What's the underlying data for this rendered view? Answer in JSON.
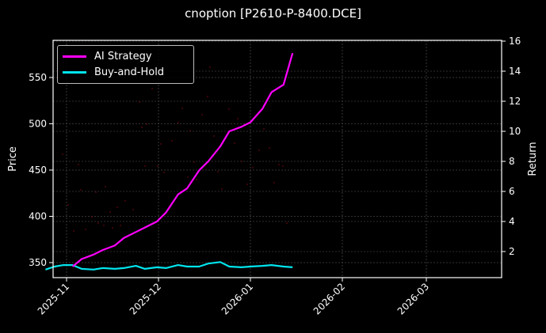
{
  "chart_data": {
    "type": "line",
    "title": "cnoption [P2610-P-8400.DCE]",
    "xlabel": "",
    "ylabel": "Price",
    "ylabel_right": "Return",
    "x_ticks": [
      "2025-11",
      "2025-12",
      "2026-01",
      "2026-02",
      "2026-03"
    ],
    "y_ticks_left": [
      350,
      400,
      450,
      500,
      550
    ],
    "y_ticks_right": [
      2,
      4,
      6,
      8,
      10,
      12,
      14,
      16
    ],
    "ylim_left": [
      333,
      585
    ],
    "ylim_right": [
      0.3,
      16
    ],
    "grid": true,
    "legend_position": "upper left",
    "colors": {
      "ai_strategy": "#ff00ff",
      "buy_and_hold": "#00e5ee",
      "background": "#000000",
      "grid": "#444444",
      "scatter": "#8b0000"
    },
    "x": [
      "2025-10-25",
      "2025-10-28",
      "2025-10-31",
      "2025-11-03",
      "2025-11-06",
      "2025-11-10",
      "2025-11-13",
      "2025-11-17",
      "2025-11-20",
      "2025-11-24",
      "2025-11-27",
      "2025-12-01",
      "2025-12-04",
      "2025-12-08",
      "2025-12-11",
      "2025-12-15",
      "2025-12-18",
      "2025-12-22",
      "2025-12-25",
      "2025-12-29",
      "2026-01-01",
      "2026-01-05",
      "2026-01-08",
      "2026-01-12",
      "2026-01-15"
    ],
    "series": [
      {
        "name": "AI Strategy",
        "axis": "right",
        "values": [
          null,
          null,
          null,
          1.0,
          1.5,
          1.8,
          2.1,
          2.4,
          2.9,
          3.3,
          3.6,
          4.0,
          4.6,
          5.8,
          6.2,
          7.4,
          8.0,
          9.0,
          10.0,
          10.3,
          10.6,
          11.5,
          12.6,
          13.1,
          15.2
        ]
      },
      {
        "name": "Buy-and-Hold",
        "axis": "right",
        "values": [
          0.8,
          1.0,
          1.1,
          1.1,
          0.85,
          0.8,
          0.9,
          0.85,
          0.9,
          1.05,
          0.85,
          0.95,
          0.9,
          1.1,
          1.0,
          1.0,
          1.2,
          1.3,
          1.0,
          0.95,
          1.0,
          1.05,
          1.1,
          1.0,
          0.95
        ]
      }
    ]
  },
  "legend": {
    "items": [
      {
        "label": "AI Strategy",
        "color": "#ff00ff"
      },
      {
        "label": "Buy-and-Hold",
        "color": "#00e5ee"
      }
    ]
  }
}
